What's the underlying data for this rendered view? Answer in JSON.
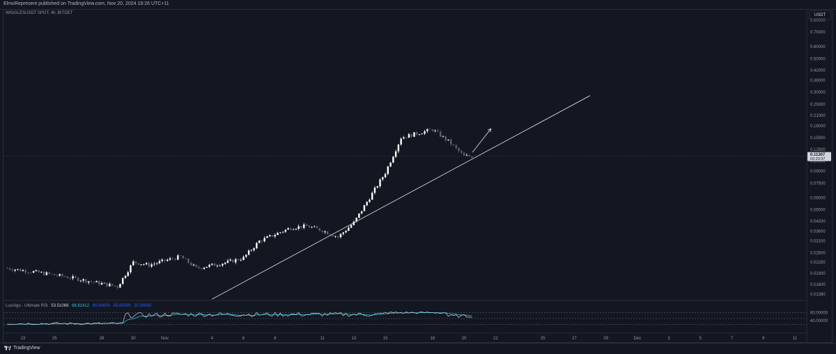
{
  "header": {
    "published_text": "ElmoRepresent published on TradingView.com, Nov 20, 2024 19:26 UTC+11"
  },
  "chart": {
    "symbol_text": "WIGGLESUSDT SPOT, 4h, BITGET",
    "currency": "USDT",
    "current_price_label": "0.11307",
    "countdown_label": "03:33:37"
  },
  "indicator": {
    "name": "LuxAlgo - Ultimate RSI",
    "value1": "53.51068",
    "value2": "68.81412",
    "value3": "80.00000",
    "value4": "50.00000",
    "value5": "20.00000"
  },
  "footer": {
    "brand": "TradingView"
  },
  "colors": {
    "background": "#131722",
    "grid": "#2a2e39",
    "candle_up": "#ffffff",
    "candle_down": "#5d606b",
    "rsi_line": "#d1d4dc",
    "rsi_signal": "#26c6da",
    "rsi_fill_high": "#1f8a78",
    "rsi_fill_low": "#b22833",
    "trendline": "#d1d4dc"
  },
  "chart_data": {
    "type": "candlestick",
    "title": "WIGGLESUSDT SPOT, 4h, BITGET",
    "y_scale": "log",
    "y_ticks": [
      "0.90000",
      "0.75000",
      "0.60000",
      "0.50000",
      "0.42000",
      "0.36000",
      "0.30000",
      "0.25000",
      "0.21000",
      "0.18000",
      "0.15000",
      "0.12500",
      "0.10500",
      "0.09000",
      "0.07500",
      "0.06000",
      "0.05000",
      "0.04200",
      "0.03600",
      "0.03100",
      "0.02600",
      "0.02250",
      "0.01900",
      "0.01600",
      "0.01380"
    ],
    "y_tick_values": [
      0.9,
      0.75,
      0.6,
      0.5,
      0.42,
      0.36,
      0.3,
      0.25,
      0.21,
      0.18,
      0.15,
      0.125,
      0.105,
      0.09,
      0.075,
      0.06,
      0.05,
      0.042,
      0.036,
      0.031,
      0.026,
      0.0225,
      0.019,
      0.016,
      0.0138
    ],
    "x_ticks": [
      "23",
      "25",
      "28",
      "30",
      "Nov",
      "4",
      "6",
      "8",
      "11",
      "13",
      "15",
      "18",
      "20",
      "22",
      "25",
      "27",
      "29",
      "Dec",
      "3",
      "5",
      "7",
      "9",
      "11"
    ],
    "x_tick_dates": [
      "2024-10-23",
      "2024-10-25",
      "2024-10-28",
      "2024-10-30",
      "2024-11-01",
      "2024-11-04",
      "2024-11-06",
      "2024-11-08",
      "2024-11-11",
      "2024-11-13",
      "2024-11-15",
      "2024-11-18",
      "2024-11-20",
      "2024-11-22",
      "2024-11-25",
      "2024-11-27",
      "2024-11-29",
      "2024-12-01",
      "2024-12-03",
      "2024-12-05",
      "2024-12-07",
      "2024-12-09",
      "2024-12-11"
    ],
    "current_price": 0.11307,
    "rsi_levels": [
      80,
      50,
      20
    ],
    "rsi_ticks": [
      "80.00000",
      "40.00000"
    ],
    "trendline": {
      "from": {
        "date": "2024-11-04",
        "price": 0.0128
      },
      "to": {
        "date": "2024-11-28",
        "price": 0.285
      }
    },
    "arrow": {
      "from": {
        "date": "2024-11-20",
        "price": 0.12
      },
      "to": {
        "date": "2024-11-21",
        "price": 0.172
      }
    },
    "price_anchors": [
      {
        "date": "2024-10-22",
        "price": 0.0205
      },
      {
        "date": "2024-10-24",
        "price": 0.0192
      },
      {
        "date": "2024-10-26",
        "price": 0.0178
      },
      {
        "date": "2024-10-28",
        "price": 0.0162
      },
      {
        "date": "2024-10-29",
        "price": 0.0155
      },
      {
        "date": "2024-10-30",
        "price": 0.0225
      },
      {
        "date": "2024-10-31",
        "price": 0.0215
      },
      {
        "date": "2024-11-01",
        "price": 0.023
      },
      {
        "date": "2024-11-02",
        "price": 0.0245
      },
      {
        "date": "2024-11-03",
        "price": 0.0205
      },
      {
        "date": "2024-11-05",
        "price": 0.0225
      },
      {
        "date": "2024-11-06",
        "price": 0.024
      },
      {
        "date": "2024-11-07",
        "price": 0.031
      },
      {
        "date": "2024-11-09",
        "price": 0.038
      },
      {
        "date": "2024-11-10",
        "price": 0.039
      },
      {
        "date": "2024-11-11",
        "price": 0.0365
      },
      {
        "date": "2024-11-12",
        "price": 0.033
      },
      {
        "date": "2024-11-13",
        "price": 0.041
      },
      {
        "date": "2024-11-14",
        "price": 0.06
      },
      {
        "date": "2024-11-15",
        "price": 0.088
      },
      {
        "date": "2024-11-16",
        "price": 0.15
      },
      {
        "date": "2024-11-17",
        "price": 0.16
      },
      {
        "date": "2024-11-18",
        "price": 0.17
      },
      {
        "date": "2024-11-19",
        "price": 0.142
      },
      {
        "date": "2024-11-20",
        "price": 0.113
      }
    ]
  }
}
